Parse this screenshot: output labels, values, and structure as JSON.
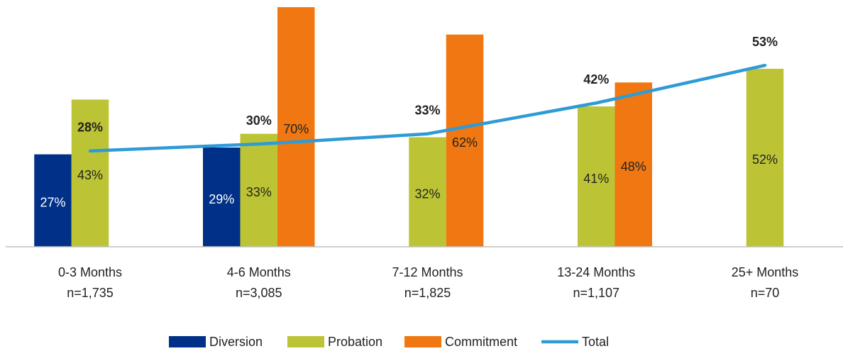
{
  "chart_data": {
    "type": "bar",
    "categories": [
      "0-3 Months",
      "4-6 Months",
      "7-12 Months",
      "13-24 Months",
      "25+ Months"
    ],
    "sample_sizes": [
      "n=1,735",
      "n=3,085",
      "n=1,825",
      "n=1,107",
      "n=70"
    ],
    "series": [
      {
        "name": "Diversion",
        "color": "#003087",
        "values": [
          27,
          29,
          null,
          null,
          null
        ],
        "value_labels": [
          "27%",
          "29%",
          null,
          null,
          null
        ]
      },
      {
        "name": "Probation",
        "color": "#bcc435",
        "values": [
          43,
          33,
          32,
          41,
          52
        ],
        "value_labels": [
          "43%",
          "33%",
          "32%",
          "41%",
          "52%"
        ]
      },
      {
        "name": "Commitment",
        "color": "#f07711",
        "values": [
          null,
          70,
          62,
          48,
          null
        ],
        "value_labels": [
          null,
          "70%",
          "62%",
          "48%",
          null
        ]
      },
      {
        "name": "Total",
        "type": "line",
        "color": "#2e9bd6",
        "values": [
          28,
          30,
          33,
          42,
          53
        ],
        "value_labels": [
          "28%",
          "30%",
          "33%",
          "42%",
          "53%"
        ]
      }
    ],
    "ylim": [
      0,
      72
    ],
    "legend": "bottom"
  }
}
